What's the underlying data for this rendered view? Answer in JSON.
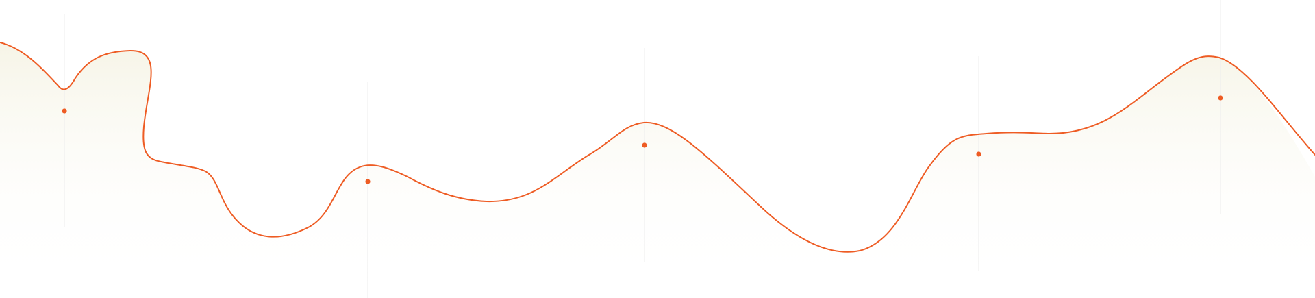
{
  "colors": {
    "line": "#ee5c24",
    "marker": "#ee5c24",
    "guide": "#ececec",
    "fill_top": "#f3f1df",
    "fill_bottom": "#ffffff"
  },
  "wave": {
    "segments": 6,
    "marker_count": 5
  }
}
